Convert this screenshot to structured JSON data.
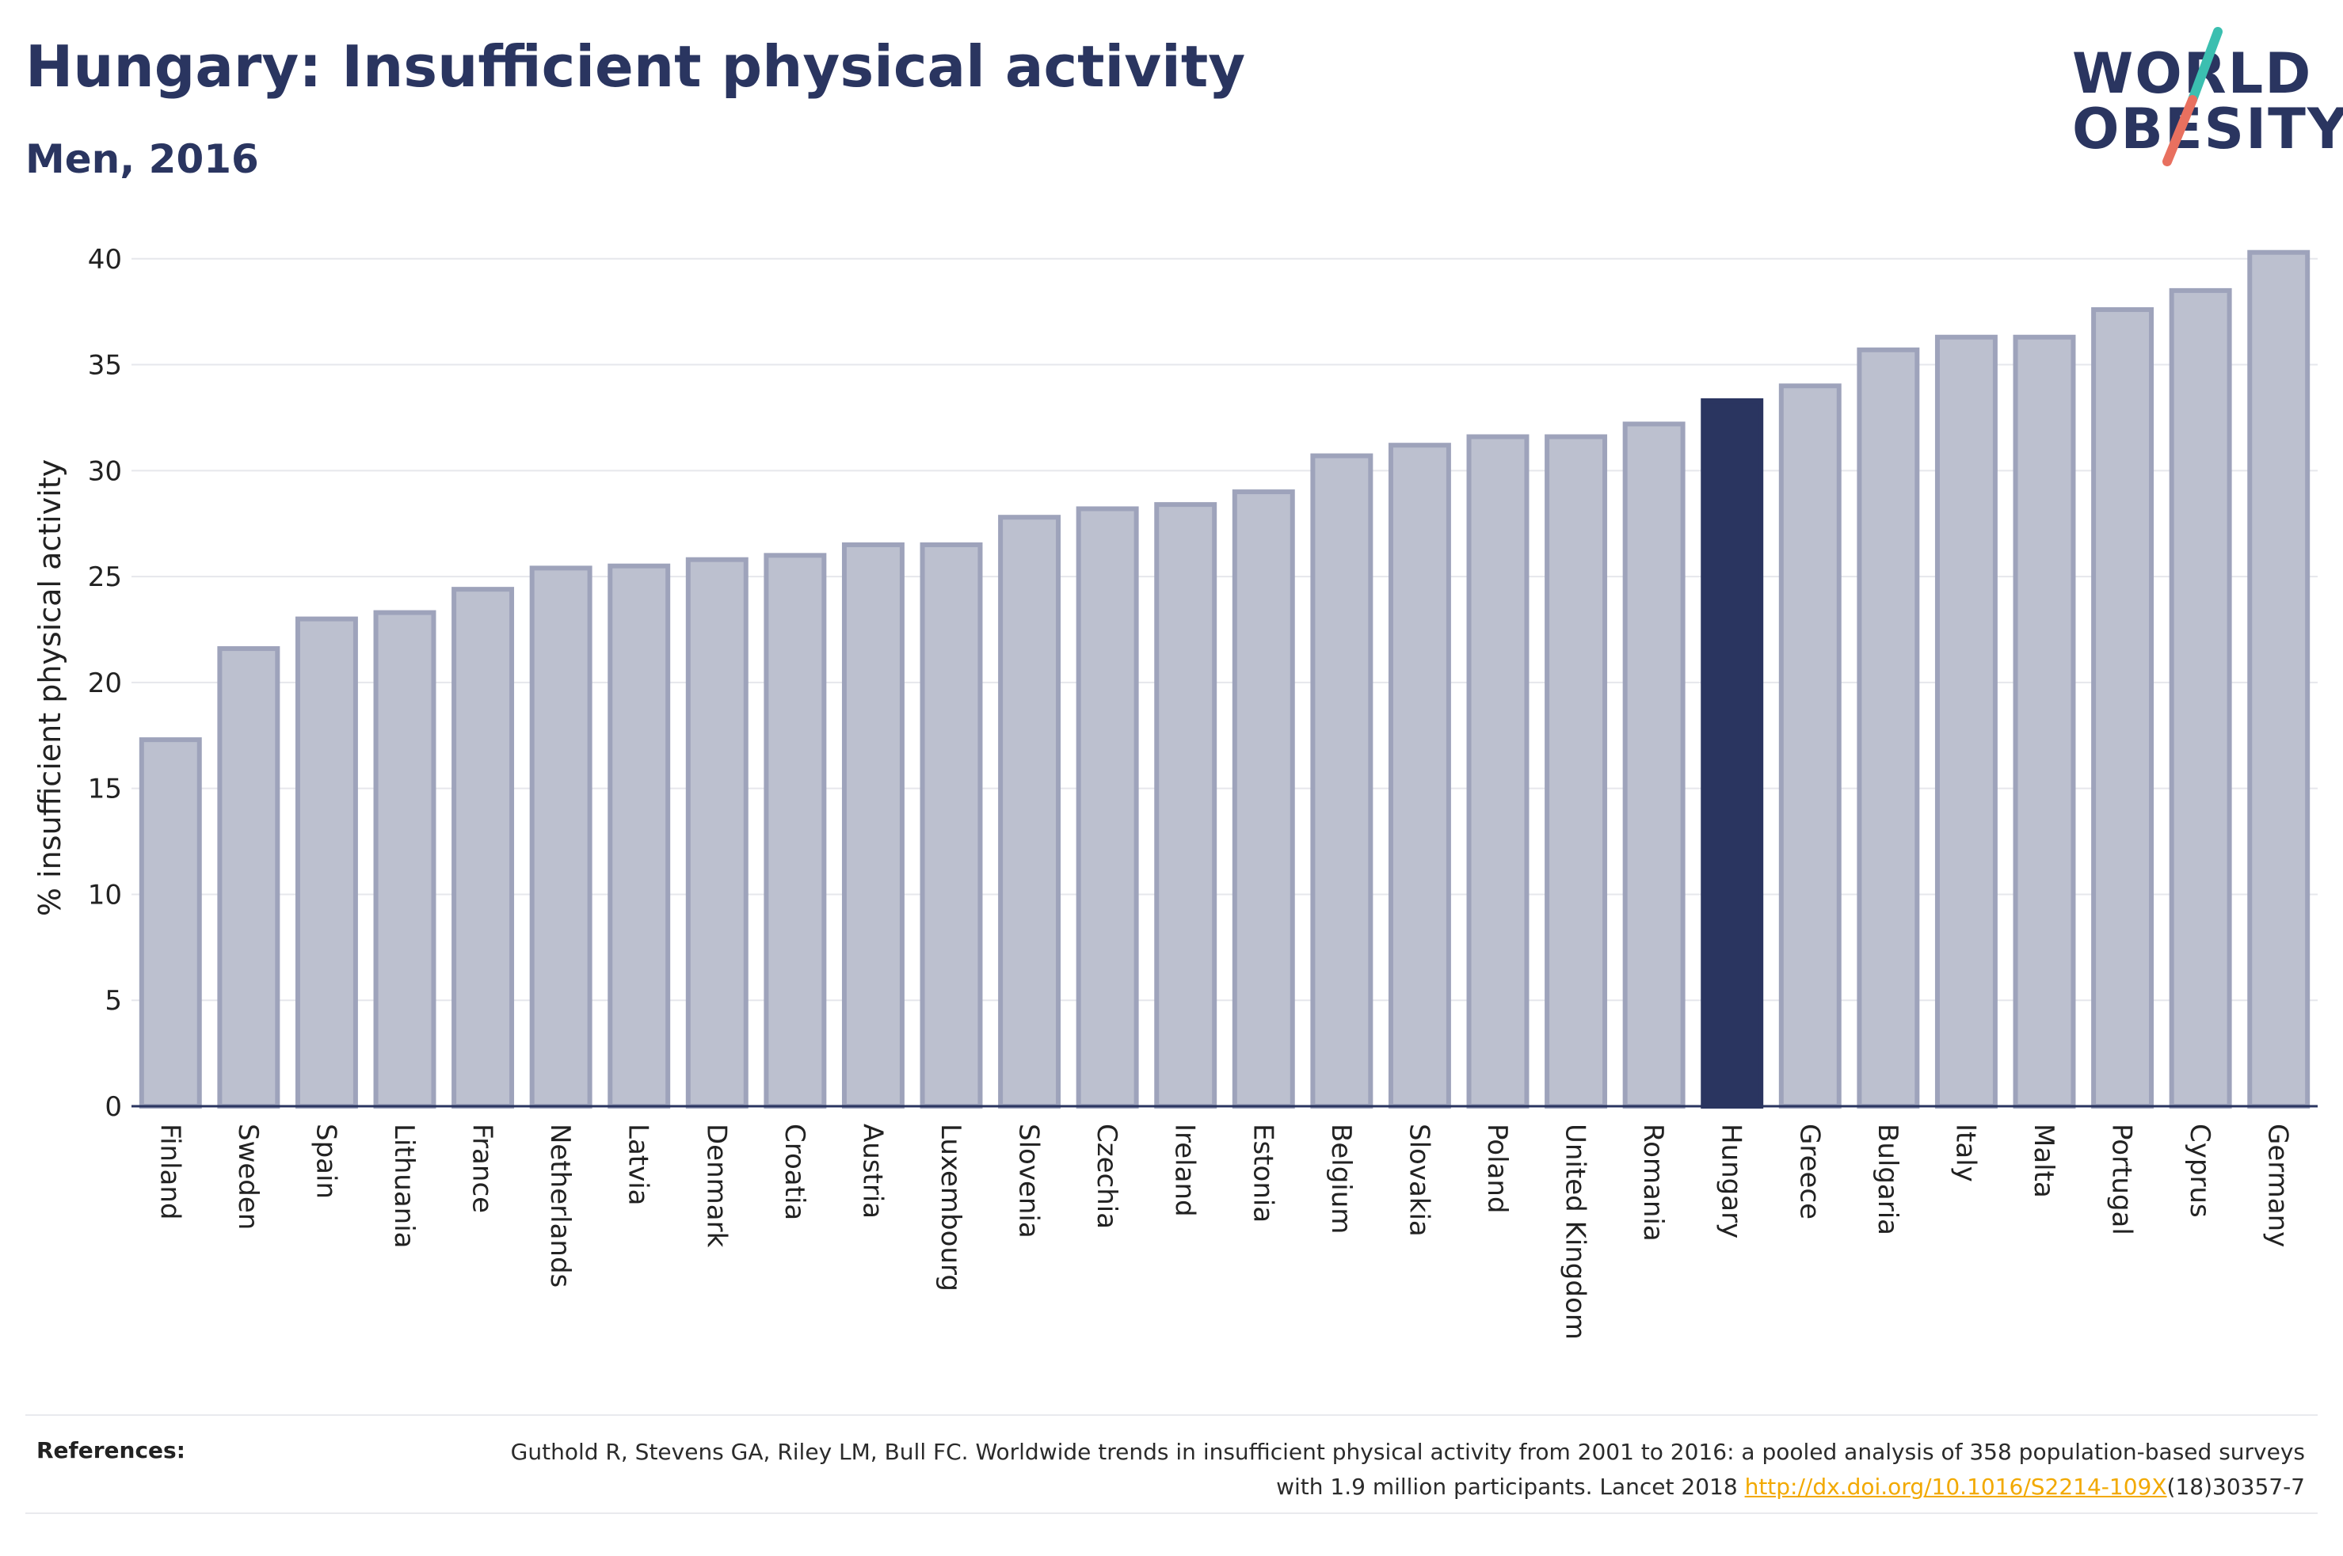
{
  "header": {
    "title": "Hungary: Insufficient physical activity",
    "subtitle": "Men, 2016"
  },
  "logo": {
    "line1": "WORLD",
    "line2": "OBESITY",
    "colors": {
      "text": "#2a3560",
      "slash_top": "#3bbfb0",
      "slash_bottom": "#e8705f"
    }
  },
  "chart_data": {
    "type": "bar",
    "title": "",
    "xlabel": "",
    "ylabel": "% insufficient physical activity",
    "ylim": [
      0,
      41
    ],
    "yticks": [
      0,
      5,
      10,
      15,
      20,
      25,
      30,
      35,
      40
    ],
    "grid": true,
    "highlight": "Hungary",
    "colors": {
      "bar": "#bcc0cf",
      "bar_edge": "#9ea3bb",
      "highlight": "#2a3560"
    },
    "categories": [
      "Finland",
      "Sweden",
      "Spain",
      "Lithuania",
      "France",
      "Netherlands",
      "Latvia",
      "Denmark",
      "Croatia",
      "Austria",
      "Luxembourg",
      "Slovenia",
      "Czechia",
      "Ireland",
      "Estonia",
      "Belgium",
      "Slovakia",
      "Poland",
      "United Kingdom",
      "Romania",
      "Hungary",
      "Greece",
      "Bulgaria",
      "Italy",
      "Malta",
      "Portugal",
      "Cyprus",
      "Germany"
    ],
    "values": [
      17.3,
      21.6,
      23.0,
      23.3,
      24.4,
      25.4,
      25.5,
      25.8,
      26.0,
      26.5,
      26.5,
      27.8,
      28.2,
      28.4,
      29.0,
      30.7,
      31.2,
      31.6,
      31.6,
      32.2,
      33.3,
      34.0,
      35.7,
      36.3,
      36.3,
      37.6,
      38.5,
      40.3
    ]
  },
  "references": {
    "label": "References:",
    "text_before": "Guthold R, Stevens GA, Riley LM, Bull FC. Worldwide trends in insufficient physical activity from 2001 to 2016: a pooled analysis of 358 population-based surveys with 1.9 million participants. Lancet 2018 ",
    "link": "http://dx.doi.org/10.1016/S2214-109X",
    "text_after": "(18)30357-7"
  }
}
